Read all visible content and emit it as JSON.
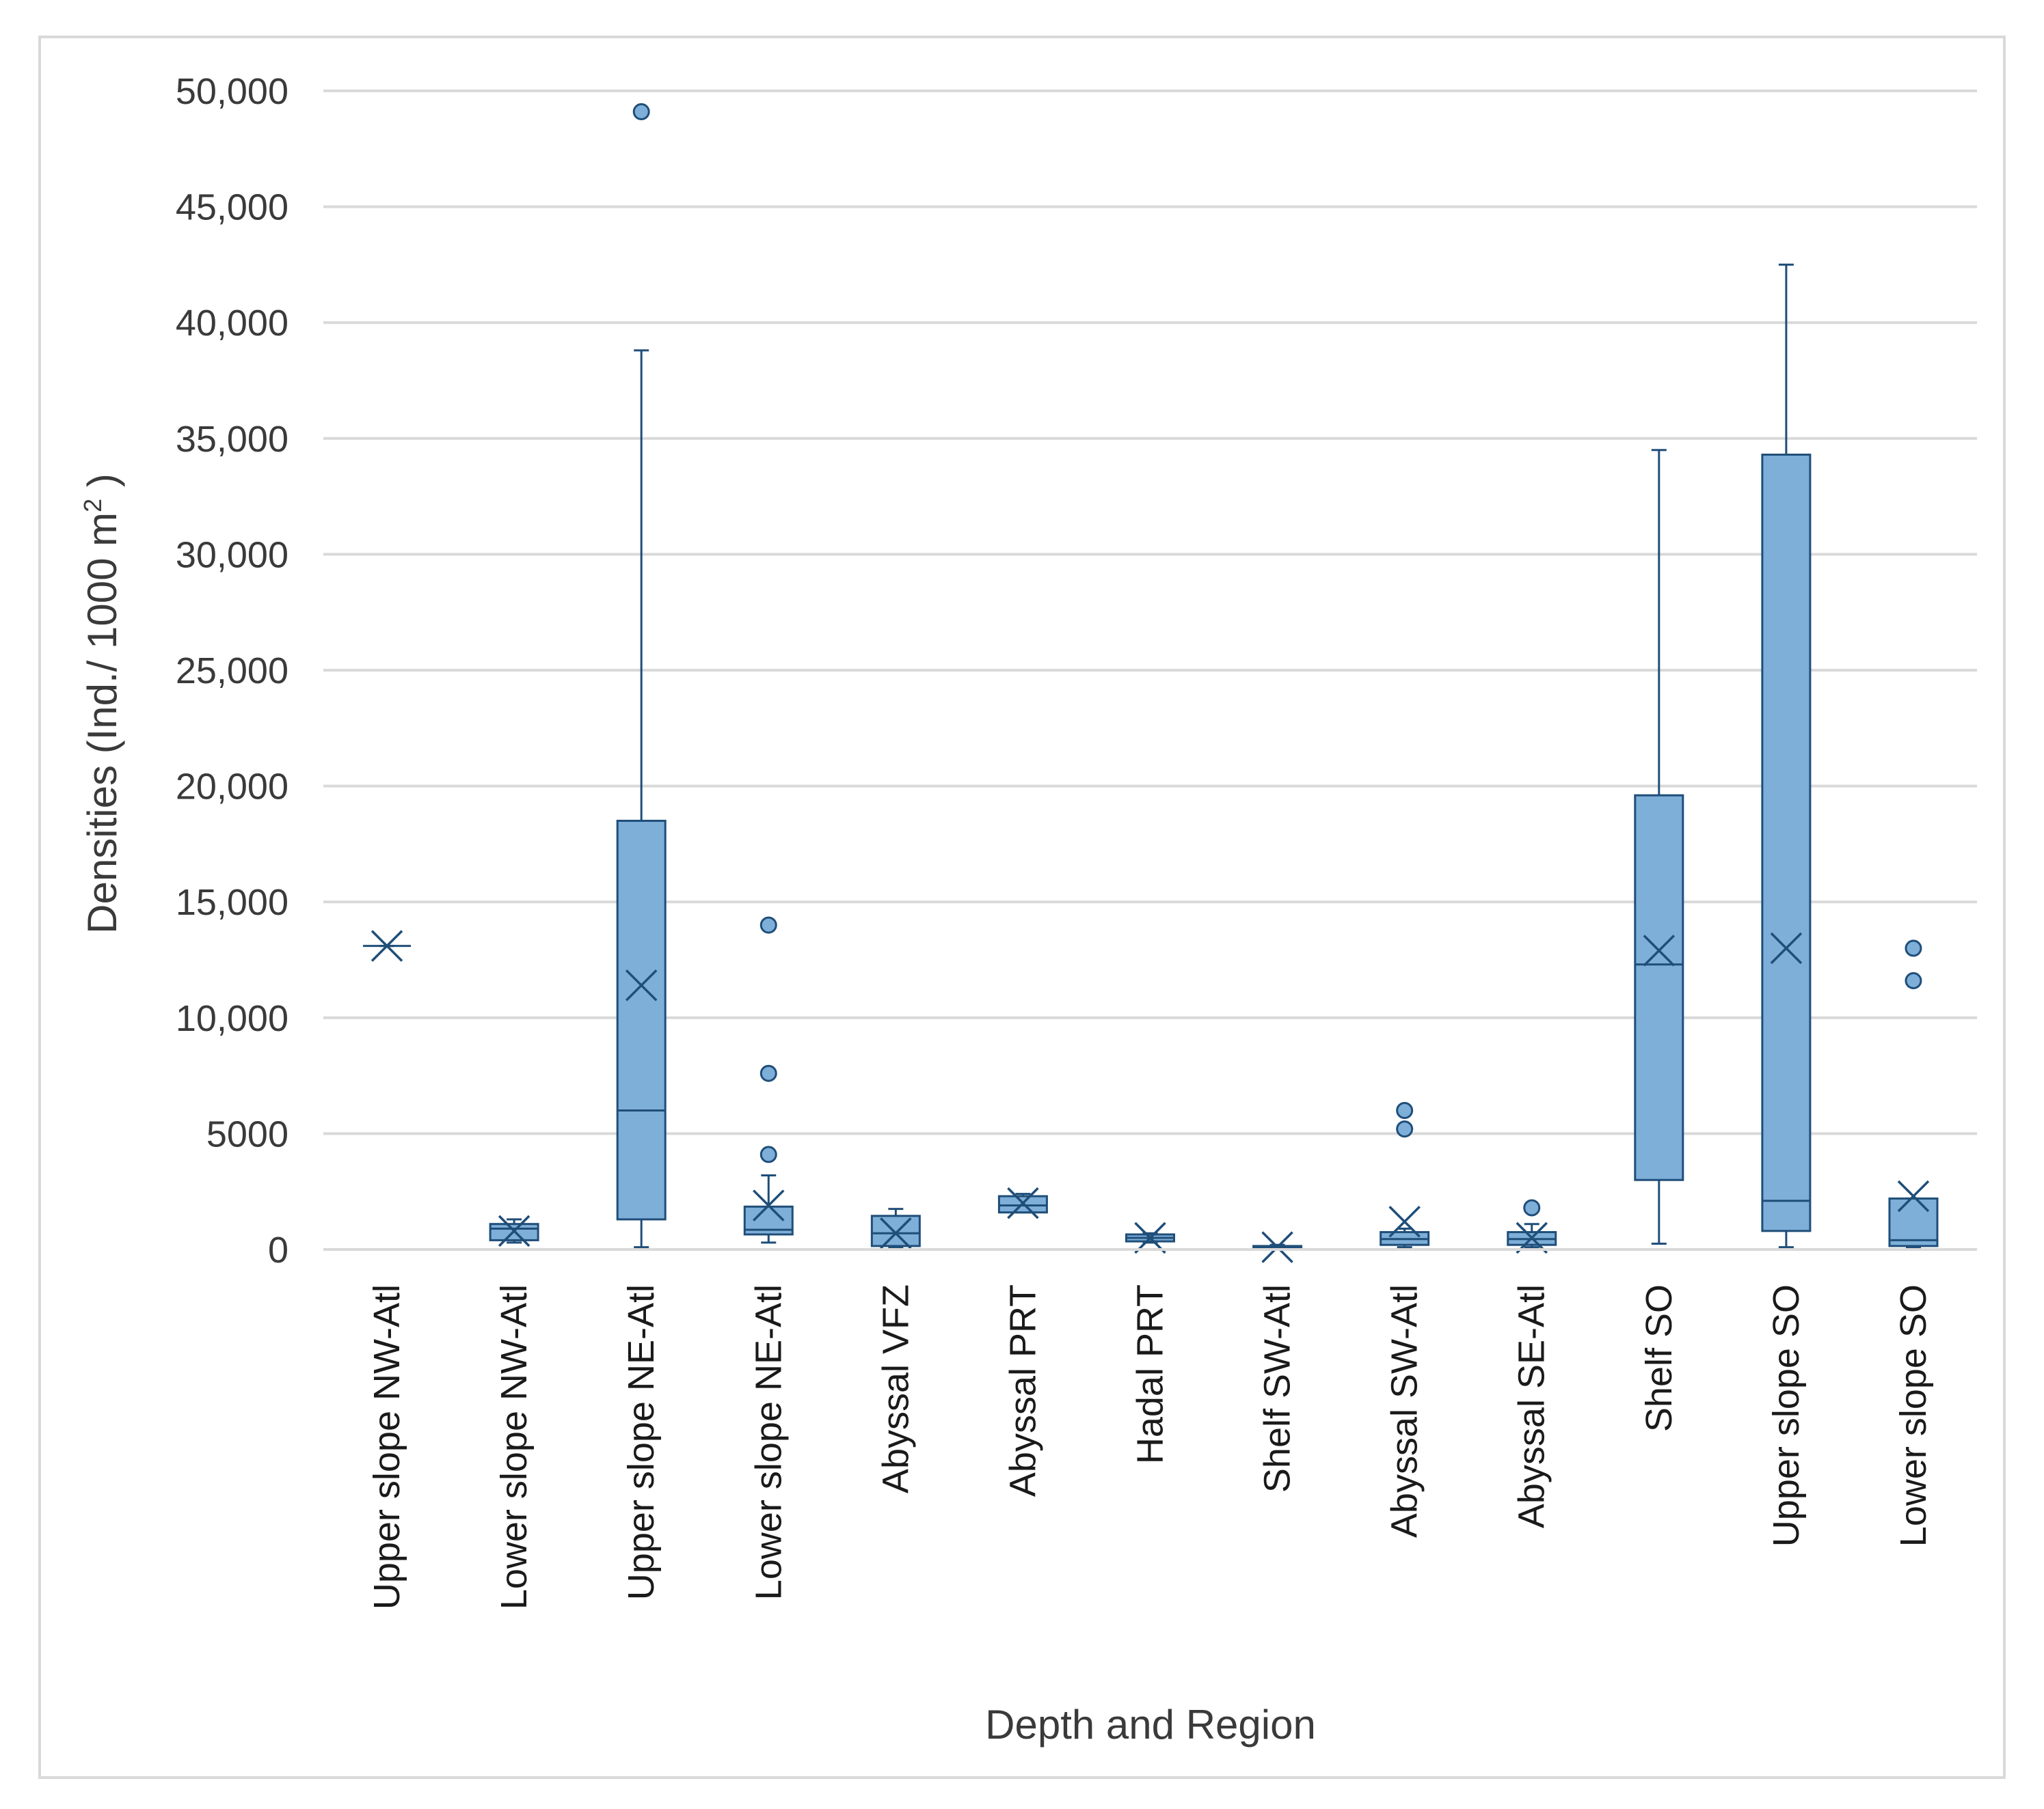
{
  "chart_data": {
    "type": "box",
    "title": "",
    "xlabel": "Depth and Region",
    "ylabel": "Densities (Ind./ 1000 m",
    "ylabel_superscript": "2",
    "ylabel_close": " )",
    "ylim": [
      0,
      50000
    ],
    "yticks": [
      {
        "value": 0,
        "label": "0"
      },
      {
        "value": 5000,
        "label": "5000"
      },
      {
        "value": 10000,
        "label": "10,000"
      },
      {
        "value": 15000,
        "label": "15,000"
      },
      {
        "value": 20000,
        "label": "20,000"
      },
      {
        "value": 25000,
        "label": "25,000"
      },
      {
        "value": 30000,
        "label": "30,000"
      },
      {
        "value": 35000,
        "label": "35,000"
      },
      {
        "value": 40000,
        "label": "40,000"
      },
      {
        "value": 45000,
        "label": "45,000"
      },
      {
        "value": 50000,
        "label": "50,000"
      }
    ],
    "gridlines": true,
    "legend": "none",
    "box_color": "#7eafd9",
    "line_color": "#1f4e79",
    "grid_color": "#d9d9d9",
    "categories": [
      "Upper slope NW-Atl",
      "Lower slope NW-Atl",
      "Upper slope NE-Atl",
      "Lower slope NE-Atl",
      "Abyssal VFZ",
      "Abyssal PRT",
      "Hadal PRT",
      "Shelf SW-Atl",
      "Abyssal SW-Atl",
      "Abyssal SE-Atl",
      "Shelf SO",
      "Upper slope SO",
      "Lower slope SO"
    ],
    "boxes": [
      {
        "min": 13100,
        "q1": 13100,
        "median": 13100,
        "q3": 13100,
        "max": 13100,
        "mean": 13100,
        "outliers": []
      },
      {
        "min": 300,
        "q1": 400,
        "median": 900,
        "q3": 1100,
        "max": 1300,
        "mean": 800,
        "outliers": []
      },
      {
        "min": 100,
        "q1": 1300,
        "median": 6000,
        "q3": 18500,
        "max": 38800,
        "mean": 11400,
        "outliers": [
          49100
        ]
      },
      {
        "min": 300,
        "q1": 650,
        "median": 850,
        "q3": 1850,
        "max": 3200,
        "mean": 1900,
        "outliers": [
          4100,
          7600,
          14000
        ]
      },
      {
        "min": 100,
        "q1": 150,
        "median": 700,
        "q3": 1450,
        "max": 1750,
        "mean": 700,
        "outliers": []
      },
      {
        "min": 1600,
        "q1": 1600,
        "median": 1900,
        "q3": 2300,
        "max": 2400,
        "mean": 2000,
        "outliers": []
      },
      {
        "min": 300,
        "q1": 350,
        "median": 500,
        "q3": 650,
        "max": 700,
        "mean": 500,
        "outliers": []
      },
      {
        "min": 30,
        "q1": 60,
        "median": 100,
        "q3": 150,
        "max": 200,
        "mean": 100,
        "outliers": []
      },
      {
        "min": 100,
        "q1": 200,
        "median": 450,
        "q3": 750,
        "max": 900,
        "mean": 1200,
        "outliers": [
          5200,
          6000
        ]
      },
      {
        "min": 100,
        "q1": 200,
        "median": 450,
        "q3": 750,
        "max": 1100,
        "mean": 500,
        "outliers": [
          1800
        ]
      },
      {
        "min": 250,
        "q1": 3000,
        "median": 12300,
        "q3": 19600,
        "max": 34500,
        "mean": 12900,
        "outliers": []
      },
      {
        "min": 100,
        "q1": 800,
        "median": 2100,
        "q3": 34300,
        "max": 42500,
        "mean": 13000,
        "outliers": []
      },
      {
        "min": 100,
        "q1": 150,
        "median": 400,
        "q3": 2200,
        "max": 2200,
        "mean": 2300,
        "outliers": [
          11600,
          13000
        ]
      }
    ]
  }
}
